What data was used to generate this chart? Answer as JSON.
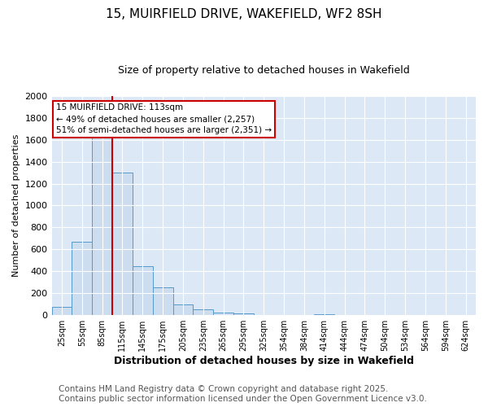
{
  "title": "15, MUIRFIELD DRIVE, WAKEFIELD, WF2 8SH",
  "subtitle": "Size of property relative to detached houses in Wakefield",
  "xlabel": "Distribution of detached houses by size in Wakefield",
  "ylabel": "Number of detached properties",
  "categories": [
    "25sqm",
    "55sqm",
    "85sqm",
    "115sqm",
    "145sqm",
    "175sqm",
    "205sqm",
    "235sqm",
    "265sqm",
    "295sqm",
    "325sqm",
    "354sqm",
    "384sqm",
    "414sqm",
    "444sqm",
    "474sqm",
    "504sqm",
    "534sqm",
    "564sqm",
    "594sqm",
    "624sqm"
  ],
  "values": [
    75,
    670,
    1700,
    1300,
    450,
    255,
    95,
    55,
    25,
    15,
    5,
    2,
    0,
    10,
    2,
    0,
    0,
    0,
    0,
    0,
    0
  ],
  "bar_color": "#ccddf0",
  "bar_edge_color": "#5599cc",
  "red_line_x": 2.5,
  "annotation_text": "15 MUIRFIELD DRIVE: 113sqm\n← 49% of detached houses are smaller (2,257)\n51% of semi-detached houses are larger (2,351) →",
  "annotation_box_color": "#ffffff",
  "annotation_box_edge": "#cc0000",
  "ylim": [
    0,
    2000
  ],
  "yticks": [
    0,
    200,
    400,
    600,
    800,
    1000,
    1200,
    1400,
    1600,
    1800,
    2000
  ],
  "plot_bg_color": "#dce8f5",
  "fig_bg_color": "#ffffff",
  "footer1": "Contains HM Land Registry data © Crown copyright and database right 2025.",
  "footer2": "Contains public sector information licensed under the Open Government Licence v3.0.",
  "title_fontsize": 11,
  "subtitle_fontsize": 9,
  "footer_fontsize": 7.5,
  "xlabel_fontsize": 9,
  "ylabel_fontsize": 8
}
